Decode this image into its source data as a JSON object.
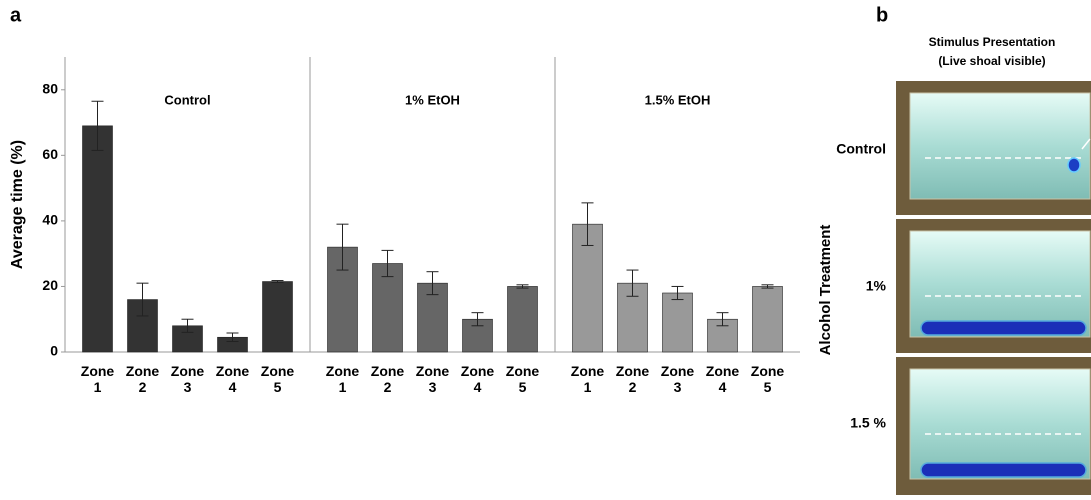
{
  "panel_labels": [
    "a",
    "b"
  ],
  "chart_data": [
    {
      "type": "bar",
      "title": "Control",
      "y_label": "Average time (%)",
      "categories": [
        "Zone 1",
        "Zone 2",
        "Zone 3",
        "Zone 4",
        "Zone 5"
      ],
      "values": [
        69,
        16,
        8,
        4.5,
        21.5
      ],
      "errors": [
        7.5,
        5,
        2,
        1.3,
        0.3
      ],
      "color": "#333333",
      "ylim": [
        0,
        90
      ],
      "yticks": [
        0,
        20,
        40,
        60,
        80
      ]
    },
    {
      "type": "bar",
      "title": "1% EtOH",
      "categories": [
        "Zone 1",
        "Zone 2",
        "Zone 3",
        "Zone 4",
        "Zone 5"
      ],
      "values": [
        32,
        27,
        21,
        10,
        20
      ],
      "errors": [
        7,
        4,
        3.5,
        2,
        0.5
      ],
      "color": "#666666",
      "ylim": [
        0,
        90
      ]
    },
    {
      "type": "bar",
      "title": "1.5% EtOH",
      "categories": [
        "Zone 1",
        "Zone 2",
        "Zone 3",
        "Zone 4",
        "Zone 5"
      ],
      "values": [
        39,
        21,
        18,
        10,
        20
      ],
      "errors": [
        6.5,
        4,
        2,
        2,
        0.5
      ],
      "color": "#999999",
      "ylim": [
        0,
        90
      ]
    }
  ],
  "panel_b": {
    "title_lines": [
      "Stimulus Presentation",
      "(Live shoal visible)"
    ],
    "row_axis_label": "Alcohol Treatment",
    "rows": [
      "Control",
      "1%",
      "1.5 %"
    ]
  }
}
